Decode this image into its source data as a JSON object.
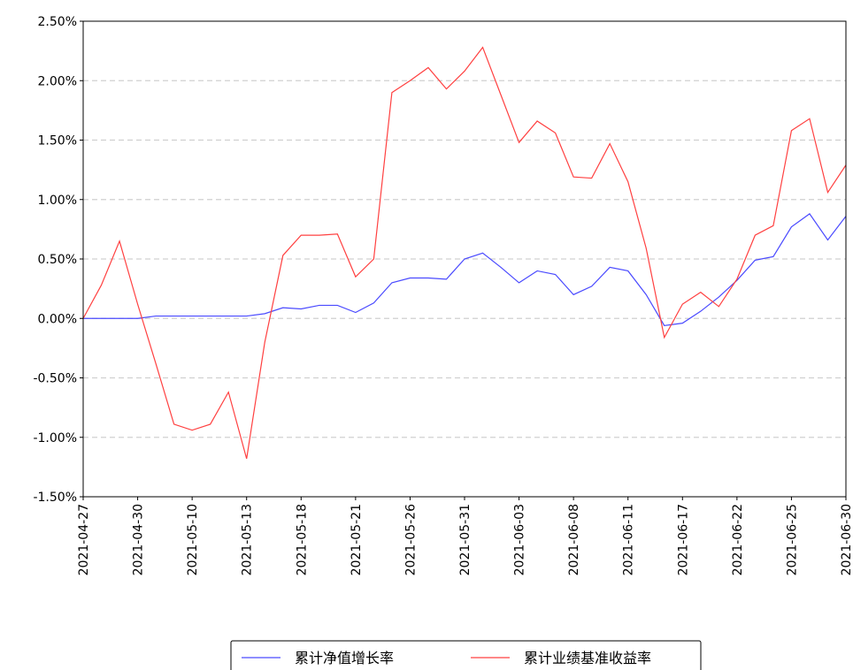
{
  "chart_data": {
    "type": "line",
    "categories": [
      "2021-04-27",
      null,
      null,
      "2021-04-30",
      null,
      null,
      "2021-05-10",
      null,
      null,
      "2021-05-13",
      null,
      null,
      "2021-05-18",
      null,
      null,
      "2021-05-21",
      null,
      null,
      "2021-05-26",
      null,
      null,
      "2021-05-31",
      null,
      null,
      "2021-06-03",
      null,
      null,
      "2021-06-08",
      null,
      null,
      "2021-06-11",
      null,
      null,
      "2021-06-17",
      null,
      null,
      "2021-06-22",
      null,
      null,
      "2021-06-25",
      null,
      null,
      "2021-06-30"
    ],
    "series": [
      {
        "name": "累计净值增长率",
        "color": "#4a4aff",
        "values": [
          0.0,
          0.0,
          0.0,
          0.0,
          0.02,
          0.02,
          0.02,
          0.02,
          0.02,
          0.02,
          0.04,
          0.09,
          0.08,
          0.11,
          0.11,
          0.05,
          0.13,
          0.3,
          0.34,
          0.34,
          0.33,
          0.5,
          0.55,
          0.43,
          0.3,
          0.4,
          0.37,
          0.2,
          0.27,
          0.43,
          0.4,
          0.2,
          -0.06,
          -0.04,
          0.06,
          0.18,
          0.32,
          0.49,
          0.52,
          0.77,
          0.88,
          0.66,
          0.86
        ]
      },
      {
        "name": "累计业绩基准收益率",
        "color": "#ff4040",
        "values": [
          0.0,
          0.28,
          0.65,
          0.12,
          -0.38,
          -0.89,
          -0.94,
          -0.89,
          -0.62,
          -1.18,
          -0.2,
          0.53,
          0.7,
          0.7,
          0.71,
          0.35,
          0.5,
          1.9,
          2.0,
          2.11,
          1.93,
          2.08,
          2.28,
          1.88,
          1.48,
          1.66,
          1.56,
          1.19,
          1.18,
          1.47,
          1.15,
          0.59,
          -0.16,
          0.12,
          0.22,
          0.1,
          0.33,
          0.7,
          0.78,
          1.58,
          1.68,
          1.06,
          1.29
        ]
      }
    ],
    "ylim": [
      -1.5,
      2.5
    ],
    "yticks": [
      {
        "value": -1.5,
        "label": "-1.50%"
      },
      {
        "value": -1.0,
        "label": "-1.00%"
      },
      {
        "value": -0.5,
        "label": "-0.50%"
      },
      {
        "value": 0,
        "label": "0.00%"
      },
      {
        "value": 0.5,
        "label": "0.50%"
      },
      {
        "value": 1.0,
        "label": "1.00%"
      },
      {
        "value": 1.5,
        "label": "1.50%"
      },
      {
        "value": 2.0,
        "label": "2.00%"
      },
      {
        "value": 2.5,
        "label": "2.50%"
      }
    ],
    "grid": true,
    "legend": "bottom"
  }
}
